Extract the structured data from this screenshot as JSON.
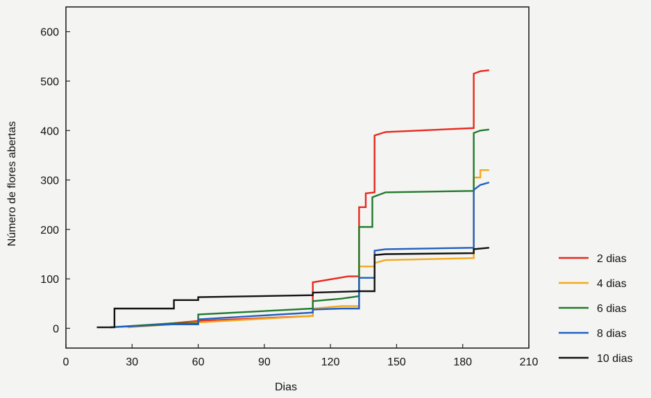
{
  "chart_data": {
    "type": "line",
    "step": true,
    "title": "",
    "xlabel": "Dias",
    "ylabel": "Número de flores abertas",
    "xlim": [
      0,
      210
    ],
    "ylim": [
      -40,
      650
    ],
    "xticks": [
      0,
      30,
      60,
      90,
      120,
      150,
      180,
      210
    ],
    "yticks": [
      0,
      100,
      200,
      300,
      400,
      500,
      600
    ],
    "grid": false,
    "legend_position": "right",
    "series": [
      {
        "name": "2 dias",
        "color": "#e8281e",
        "points": [
          [
            28,
            2
          ],
          [
            48,
            10
          ],
          [
            60,
            15
          ],
          [
            112,
            25
          ],
          [
            112,
            93
          ],
          [
            128,
            105
          ],
          [
            133,
            105
          ],
          [
            133,
            245
          ],
          [
            136,
            245
          ],
          [
            136,
            273
          ],
          [
            140,
            275
          ],
          [
            140,
            390
          ],
          [
            145,
            397
          ],
          [
            185,
            405
          ],
          [
            185,
            515
          ],
          [
            188,
            520
          ],
          [
            192,
            522
          ]
        ]
      },
      {
        "name": "4 dias",
        "color": "#f2a81d",
        "points": [
          [
            28,
            2
          ],
          [
            48,
            8
          ],
          [
            60,
            12
          ],
          [
            112,
            25
          ],
          [
            112,
            40
          ],
          [
            125,
            45
          ],
          [
            133,
            45
          ],
          [
            133,
            125
          ],
          [
            140,
            125
          ],
          [
            140,
            132
          ],
          [
            145,
            138
          ],
          [
            185,
            142
          ],
          [
            185,
            305
          ],
          [
            188,
            305
          ],
          [
            188,
            320
          ],
          [
            192,
            320
          ]
        ]
      },
      {
        "name": "6 dias",
        "color": "#1f7a2a",
        "points": [
          [
            20,
            2
          ],
          [
            48,
            10
          ],
          [
            60,
            10
          ],
          [
            60,
            28
          ],
          [
            112,
            40
          ],
          [
            112,
            55
          ],
          [
            125,
            60
          ],
          [
            133,
            65
          ],
          [
            133,
            205
          ],
          [
            139,
            205
          ],
          [
            139,
            265
          ],
          [
            145,
            275
          ],
          [
            185,
            278
          ],
          [
            185,
            395
          ],
          [
            188,
            400
          ],
          [
            192,
            402
          ]
        ]
      },
      {
        "name": "8 dias",
        "color": "#1f5fbf",
        "points": [
          [
            20,
            2
          ],
          [
            48,
            8
          ],
          [
            60,
            8
          ],
          [
            60,
            18
          ],
          [
            112,
            32
          ],
          [
            112,
            38
          ],
          [
            125,
            40
          ],
          [
            133,
            40
          ],
          [
            133,
            102
          ],
          [
            140,
            102
          ],
          [
            140,
            157
          ],
          [
            145,
            160
          ],
          [
            185,
            163
          ],
          [
            185,
            280
          ],
          [
            188,
            290
          ],
          [
            192,
            295
          ]
        ]
      },
      {
        "name": "10 dias",
        "color": "#111111",
        "points": [
          [
            14,
            2
          ],
          [
            22,
            2
          ],
          [
            22,
            40
          ],
          [
            49,
            40
          ],
          [
            49,
            57
          ],
          [
            60,
            57
          ],
          [
            60,
            63
          ],
          [
            112,
            67
          ],
          [
            112,
            72
          ],
          [
            133,
            75
          ],
          [
            140,
            75
          ],
          [
            140,
            148
          ],
          [
            145,
            150
          ],
          [
            185,
            152
          ],
          [
            185,
            160
          ],
          [
            192,
            163
          ]
        ]
      }
    ]
  }
}
